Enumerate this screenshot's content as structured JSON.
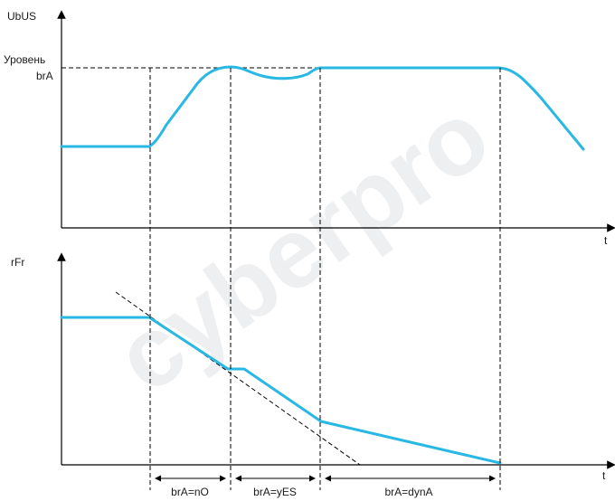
{
  "watermark": {
    "text": "cyberpro"
  },
  "top_plot": {
    "y_axis_label": "UbUS",
    "x_axis_label": "t",
    "level_label_line1": "Уровень",
    "level_label_line2": "brA"
  },
  "bottom_plot": {
    "y_axis_label": "rFr",
    "x_axis_label": "t"
  },
  "interval_labels": [
    "brA=nO",
    "brA=yES",
    "brA=dynA"
  ],
  "colors": {
    "curve": "#29b8e3",
    "axis": "#000000",
    "dashed": "#000000"
  }
}
